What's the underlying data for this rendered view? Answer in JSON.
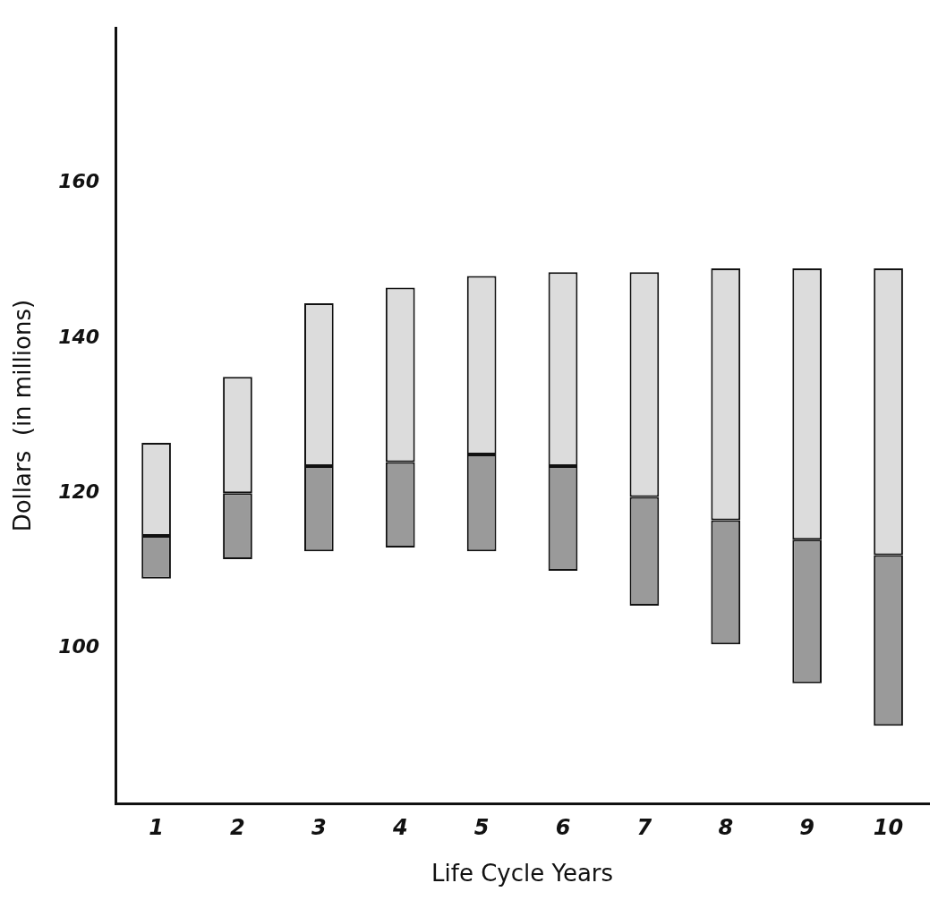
{
  "chart_data": {
    "type": "bar",
    "xlabel": "Life Cycle Years",
    "ylabel": "Dollars  (in millions)",
    "categories": [
      "1",
      "2",
      "3",
      "4",
      "5",
      "6",
      "7",
      "8",
      "9",
      "10"
    ],
    "series": [
      {
        "color": "#9a9a9a",
        "base": [
          109,
          111.5,
          112.5,
          113,
          112.5,
          110,
          105.5,
          100.5,
          95.5,
          90
        ],
        "values": [
          5.5,
          8.5,
          11,
          11,
          12.5,
          13.5,
          14,
          16,
          18.5,
          22
        ]
      },
      {
        "color": "#dcdcdc",
        "base": [
          114.5,
          120,
          123.5,
          124,
          125,
          123.5,
          119.5,
          116.5,
          114,
          112
        ],
        "values": [
          12,
          15,
          21,
          22.5,
          23,
          25,
          29,
          32.5,
          35,
          37
        ]
      }
    ],
    "ylim": [
      80,
      180
    ],
    "yticks": [
      100,
      120,
      140,
      160
    ],
    "grid": false,
    "legend": false
  }
}
